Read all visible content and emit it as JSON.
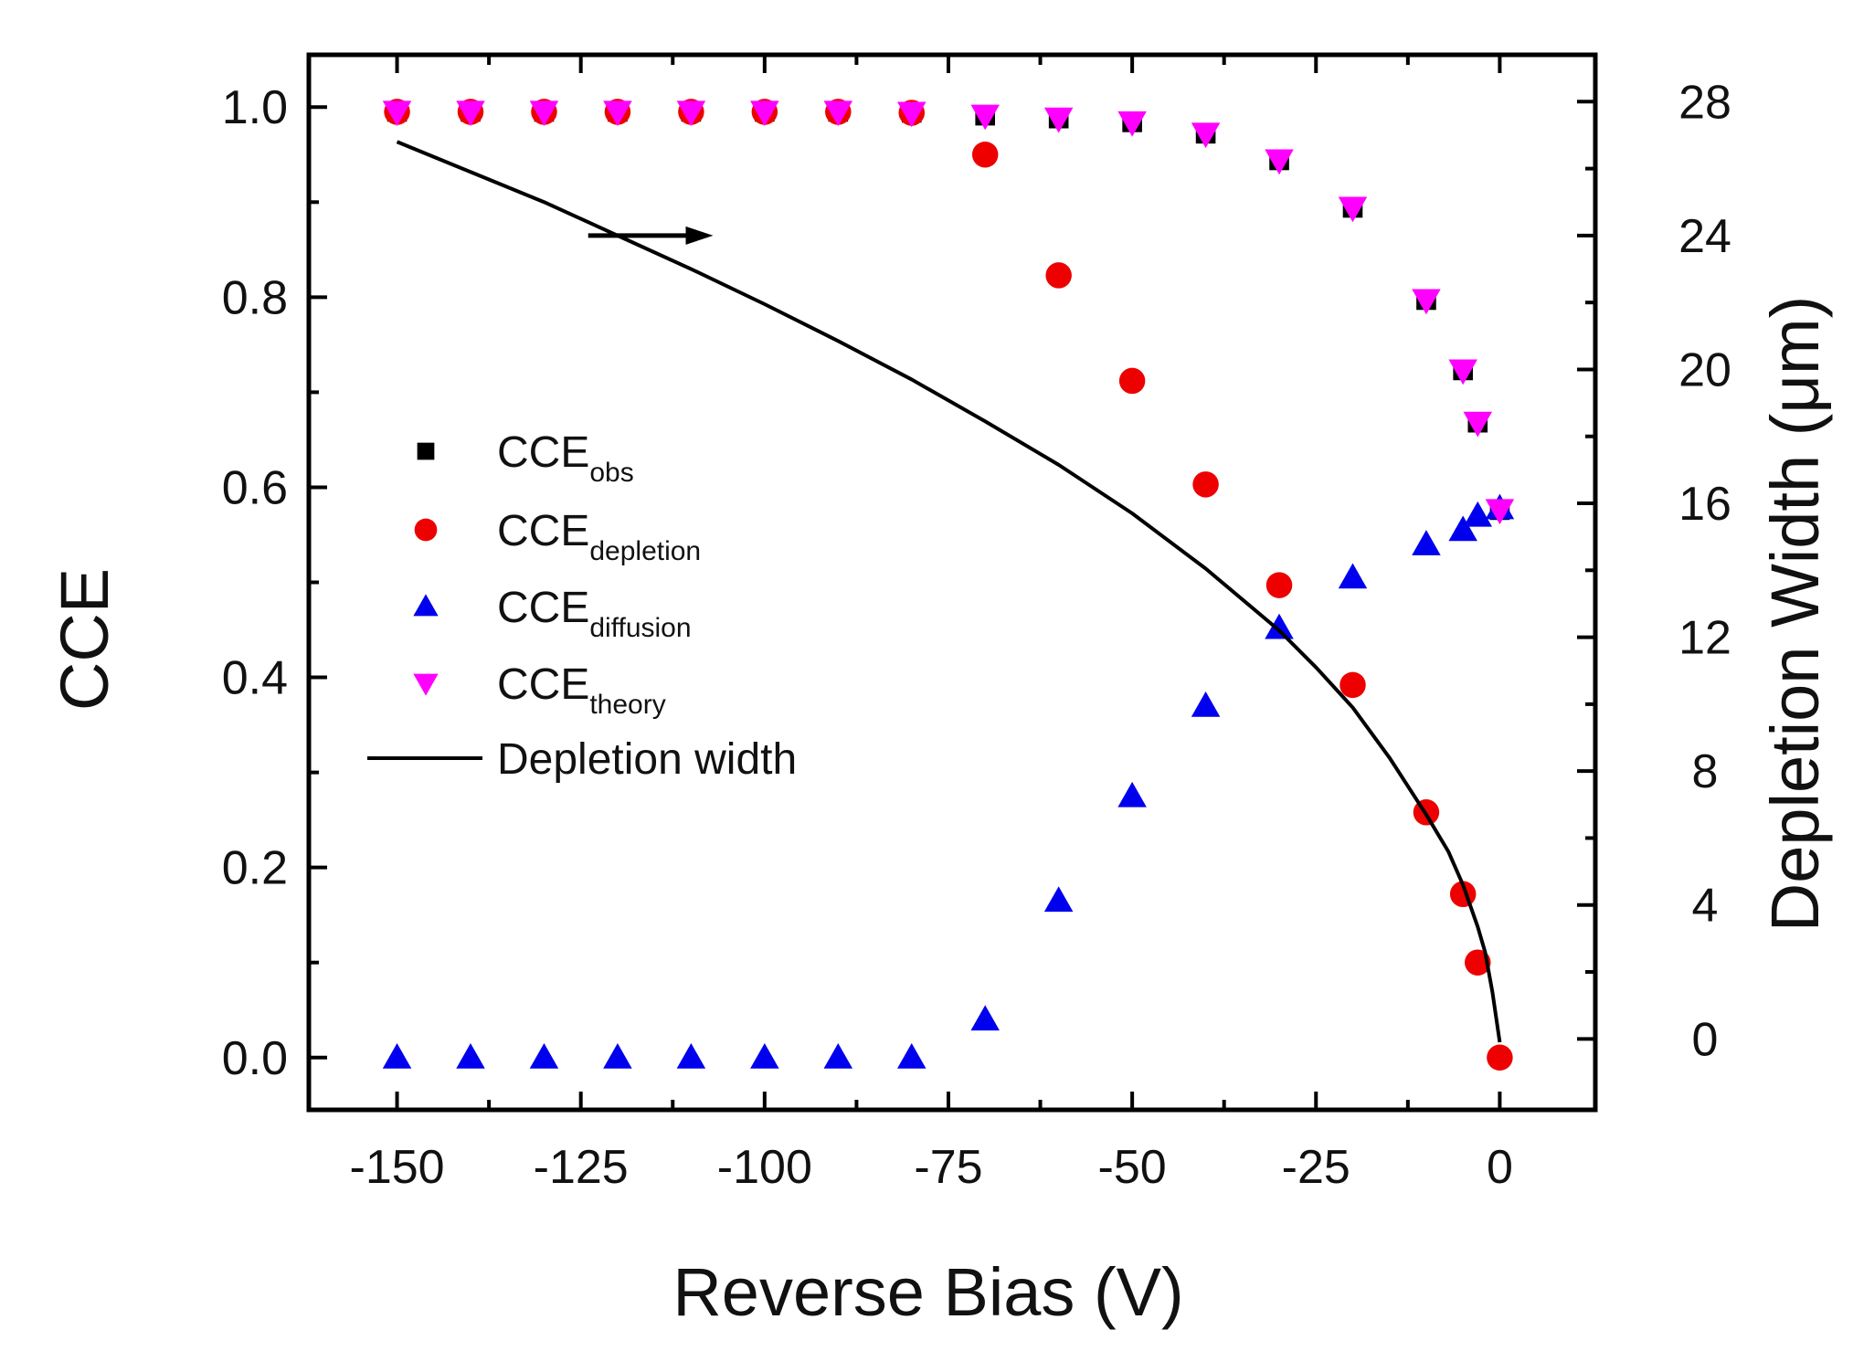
{
  "chart_data": {
    "type": "scatter",
    "title": "",
    "xlabel": "Reverse Bias (V)",
    "ylabel": "CCE",
    "y2label": "Depletion Width (μm)",
    "xlim": [
      -162,
      13
    ],
    "ylim": [
      -0.055,
      1.055
    ],
    "y2lim": [
      -2.12,
      29.4
    ],
    "xticks": [
      -150,
      -125,
      -100,
      -75,
      -50,
      -25,
      0
    ],
    "xtick_labels": [
      "-150",
      "-125",
      "-100",
      "-75",
      "-50",
      "-25",
      "0"
    ],
    "yticks": [
      0.0,
      0.2,
      0.4,
      0.6,
      0.8,
      1.0
    ],
    "ytick_labels": [
      "0.0",
      "0.2",
      "0.4",
      "0.6",
      "0.8",
      "1.0"
    ],
    "y2ticks": [
      0,
      4,
      8,
      12,
      16,
      20,
      24,
      28
    ],
    "y2tick_labels": [
      "0",
      "4",
      "8",
      "12",
      "16",
      "20",
      "24",
      "28"
    ],
    "grid": false,
    "legend_position": "center-left",
    "annotation": {
      "type": "arrow",
      "direction": "right",
      "meaning": "depletion width on right axis",
      "from": [
        -124,
        24
      ],
      "to": [
        -107,
        24
      ]
    },
    "series": [
      {
        "name": "CCE",
        "subscript": "obs",
        "marker": "square",
        "color": "#000000",
        "axis": "left",
        "x": [
          -150,
          -140,
          -130,
          -120,
          -110,
          -100,
          -90,
          -80,
          -70,
          -60,
          -50,
          -40,
          -30,
          -20,
          -10,
          -5,
          -3,
          0
        ],
        "y": [
          0.995,
          0.995,
          0.995,
          0.995,
          0.995,
          0.995,
          0.995,
          0.994,
          0.991,
          0.988,
          0.984,
          0.972,
          0.944,
          0.894,
          0.797,
          0.723,
          0.668,
          0.576
        ]
      },
      {
        "name": "CCE",
        "subscript": "depletion",
        "marker": "circle",
        "color": "#ee0000",
        "axis": "left",
        "x": [
          -150,
          -140,
          -130,
          -120,
          -110,
          -100,
          -90,
          -80,
          -70,
          -60,
          -50,
          -40,
          -30,
          -20,
          -10,
          -5,
          -3,
          0
        ],
        "y": [
          0.995,
          0.995,
          0.995,
          0.995,
          0.995,
          0.995,
          0.995,
          0.994,
          0.95,
          0.823,
          0.712,
          0.603,
          0.497,
          0.392,
          0.258,
          0.172,
          0.1,
          0.0
        ]
      },
      {
        "name": "CCE",
        "subscript": "diffusion",
        "marker": "triangle-up",
        "color": "#0000ee",
        "axis": "left",
        "x": [
          -150,
          -140,
          -130,
          -120,
          -110,
          -100,
          -90,
          -80,
          -70,
          -60,
          -50,
          -40,
          -30,
          -20,
          -10,
          -5,
          -3,
          0
        ],
        "y": [
          0.0,
          0.0,
          0.0,
          0.0,
          0.0,
          0.0,
          0.0,
          0.0,
          0.04,
          0.165,
          0.275,
          0.37,
          0.452,
          0.505,
          0.54,
          0.555,
          0.57,
          0.578
        ]
      },
      {
        "name": "CCE",
        "subscript": "theory",
        "marker": "triangle-down",
        "color": "#ff00ff",
        "axis": "left",
        "x": [
          -150,
          -140,
          -130,
          -120,
          -110,
          -100,
          -90,
          -80,
          -70,
          -60,
          -50,
          -40,
          -30,
          -20,
          -10,
          -5,
          -3,
          0
        ],
        "y": [
          0.995,
          0.995,
          0.995,
          0.995,
          0.995,
          0.995,
          0.995,
          0.994,
          0.991,
          0.988,
          0.984,
          0.972,
          0.944,
          0.894,
          0.797,
          0.723,
          0.668,
          0.576
        ]
      },
      {
        "name": "Depletion width",
        "subscript": "",
        "marker": "line",
        "color": "#000000",
        "axis": "right",
        "x": [
          -150,
          -140,
          -130,
          -120,
          -110,
          -100,
          -90,
          -80,
          -70,
          -60,
          -50,
          -40,
          -30,
          -25,
          -20,
          -15,
          -10,
          -7,
          -5,
          -3,
          -2,
          -1,
          0
        ],
        "y": [
          26.8,
          25.9,
          25.0,
          24.0,
          23.0,
          21.95,
          20.85,
          19.7,
          18.45,
          17.15,
          15.7,
          14.05,
          12.2,
          11.1,
          9.9,
          8.4,
          6.7,
          5.6,
          4.6,
          3.35,
          2.6,
          1.4,
          -0.1
        ]
      }
    ]
  }
}
